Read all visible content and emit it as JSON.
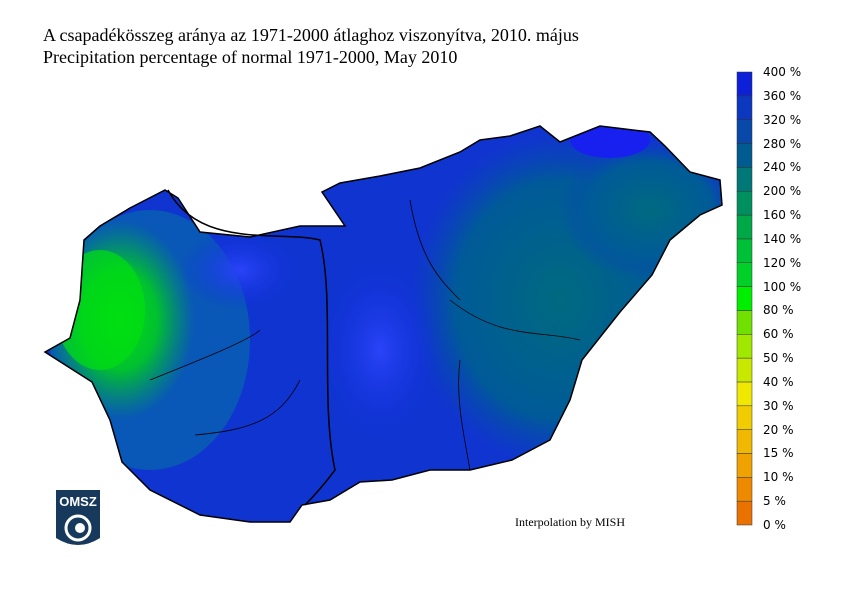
{
  "title_hu": "A csapadékösszeg aránya az 1971-2000 átlaghoz viszonyítva, 2010. május",
  "title_en": "Precipitation percentage of normal 1971-2000, May 2010",
  "credit": "Interpolation by MISH",
  "logo_text": "OMSZ",
  "legend": {
    "labels": [
      "0 %",
      "5 %",
      "10 %",
      "15 %",
      "20 %",
      "30 %",
      "40 %",
      "50 %",
      "60 %",
      "80 %",
      "100 %",
      "120 %",
      "140 %",
      "160 %",
      "200 %",
      "240 %",
      "280 %",
      "320 %",
      "360 %",
      "400 %"
    ],
    "colors": [
      "#ea7200",
      "#ee8a00",
      "#f0a200",
      "#f0b800",
      "#f0cc00",
      "#f0e800",
      "#c8e800",
      "#a0e800",
      "#70e000",
      "#00ee00",
      "#00d028",
      "#00c038",
      "#00a848",
      "#009060",
      "#007878",
      "#005c90",
      "#0848a8",
      "#0c38c0",
      "#0c20d8",
      "#0010f0"
    ]
  },
  "map_colors": {
    "wet": "#1030e0",
    "very_wet": "#2040f0",
    "teal": "#006a80",
    "green": "#00dd10",
    "mid_green": "#00a850"
  }
}
